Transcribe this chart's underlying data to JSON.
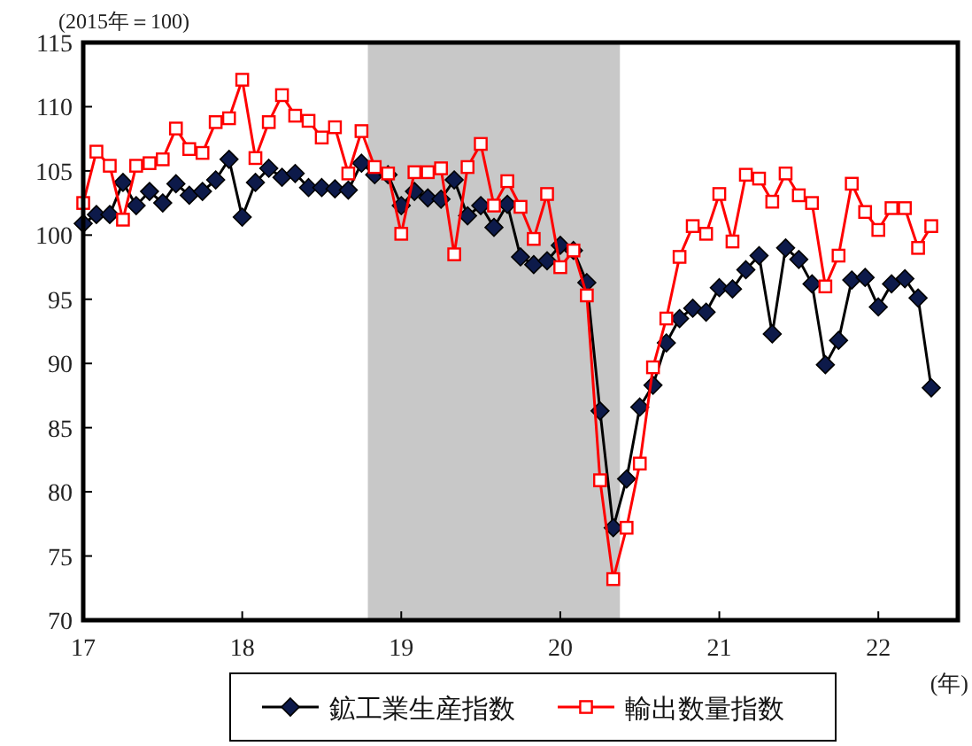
{
  "chart_data": {
    "type": "line",
    "ylabel": "(2015年＝100)",
    "xlabel": "(年)",
    "x": [
      17,
      17.083,
      17.167,
      17.25,
      17.333,
      17.417,
      17.5,
      17.583,
      17.667,
      17.75,
      17.833,
      17.917,
      18,
      18.083,
      18.167,
      18.25,
      18.333,
      18.417,
      18.5,
      18.583,
      18.667,
      18.75,
      18.833,
      18.917,
      19,
      19.083,
      19.167,
      19.25,
      19.333,
      19.417,
      19.5,
      19.583,
      19.667,
      19.75,
      19.833,
      19.917,
      20,
      20.083,
      20.167,
      20.25,
      20.333,
      20.417,
      20.5,
      20.583,
      20.667,
      20.75,
      20.833,
      20.917,
      21,
      21.083,
      21.167,
      21.25,
      21.333,
      21.417,
      21.5,
      21.583,
      21.667,
      21.75,
      21.833,
      21.917,
      22,
      22.083,
      22.167,
      22.25,
      22.333
    ],
    "series": [
      {
        "name": "鉱工業生産指数",
        "color": "#0d1a4a",
        "marker": "diamond",
        "values": [
          100.9,
          101.6,
          101.6,
          104.1,
          102.3,
          103.4,
          102.5,
          104.0,
          103.1,
          103.4,
          104.3,
          105.9,
          101.4,
          104.1,
          105.2,
          104.5,
          104.8,
          103.7,
          103.7,
          103.6,
          103.5,
          105.6,
          104.7,
          104.7,
          102.3,
          103.4,
          102.9,
          102.8,
          104.3,
          101.5,
          102.3,
          100.6,
          102.4,
          98.3,
          97.7,
          98.0,
          99.2,
          98.8,
          96.3,
          86.3,
          77.2,
          81.0,
          86.6,
          88.3,
          91.6,
          93.5,
          94.3,
          94.0,
          95.9,
          95.8,
          97.3,
          98.4,
          92.3,
          99.0,
          98.1,
          96.2,
          89.9,
          91.8,
          96.5,
          96.7,
          94.4,
          96.2,
          96.6,
          95.1,
          88.1
        ]
      },
      {
        "name": "輸出数量指数",
        "color": "#ff0000",
        "marker": "square",
        "values": [
          102.5,
          106.5,
          105.4,
          101.2,
          105.4,
          105.6,
          105.9,
          108.3,
          106.7,
          106.4,
          108.8,
          109.1,
          112.1,
          106.0,
          108.8,
          110.9,
          109.3,
          108.9,
          107.6,
          108.4,
          104.8,
          108.1,
          105.3,
          104.8,
          100.1,
          104.9,
          104.9,
          105.2,
          98.5,
          105.3,
          107.1,
          102.3,
          104.2,
          102.2,
          99.7,
          103.2,
          97.5,
          98.8,
          95.3,
          80.9,
          73.2,
          77.2,
          82.2,
          89.7,
          93.5,
          98.3,
          100.7,
          100.1,
          103.2,
          99.5,
          104.7,
          104.4,
          102.6,
          104.8,
          103.1,
          102.5,
          96.0,
          98.4,
          104.0,
          101.8,
          100.4,
          102.1,
          102.1,
          99.0,
          100.7
        ]
      }
    ],
    "xlim": [
      17,
      22.5
    ],
    "xticks": [
      17,
      18,
      19,
      20,
      21,
      22
    ],
    "ylim": [
      70,
      115
    ],
    "yticks": [
      70,
      75,
      80,
      85,
      90,
      95,
      100,
      105,
      110,
      115
    ],
    "bands": [
      {
        "axis": "x",
        "from": 18.79,
        "to": 20.375,
        "color": "#c8c8c8"
      }
    ],
    "legend": "bottom",
    "grid": false,
    "line_style": "solid"
  }
}
